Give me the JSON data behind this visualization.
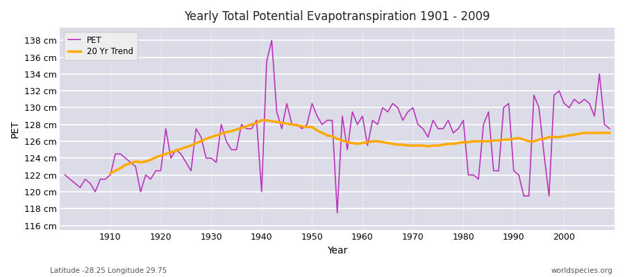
{
  "title": "Yearly Total Potential Evapotranspiration 1901 - 2009",
  "xlabel": "Year",
  "ylabel": "PET",
  "subtitle": "Latitude -28.25 Longitude 29.75",
  "watermark": "worldspecies.org",
  "pet_color": "#bb33bb",
  "trend_color": "#ffaa00",
  "fig_background_color": "#ffffff",
  "plot_background_color": "#dcdce8",
  "grid_color": "#ffffff",
  "ylim": [
    115.5,
    139.5
  ],
  "ytick_values": [
    116,
    118,
    120,
    122,
    124,
    126,
    128,
    130,
    132,
    134,
    136,
    138
  ],
  "xlim": [
    1900,
    2010
  ],
  "xticks": [
    1910,
    1920,
    1930,
    1940,
    1950,
    1960,
    1970,
    1980,
    1990,
    2000
  ],
  "years": [
    1901,
    1902,
    1903,
    1904,
    1905,
    1906,
    1907,
    1908,
    1909,
    1910,
    1911,
    1912,
    1913,
    1914,
    1915,
    1916,
    1917,
    1918,
    1919,
    1920,
    1921,
    1922,
    1923,
    1924,
    1925,
    1926,
    1927,
    1928,
    1929,
    1930,
    1931,
    1932,
    1933,
    1934,
    1935,
    1936,
    1937,
    1938,
    1939,
    1940,
    1941,
    1942,
    1943,
    1944,
    1945,
    1946,
    1947,
    1948,
    1949,
    1950,
    1951,
    1952,
    1953,
    1954,
    1955,
    1956,
    1957,
    1958,
    1959,
    1960,
    1961,
    1962,
    1963,
    1964,
    1965,
    1966,
    1967,
    1968,
    1969,
    1970,
    1971,
    1972,
    1973,
    1974,
    1975,
    1976,
    1977,
    1978,
    1979,
    1980,
    1981,
    1982,
    1983,
    1984,
    1985,
    1986,
    1987,
    1988,
    1989,
    1990,
    1991,
    1992,
    1993,
    1994,
    1995,
    1996,
    1997,
    1998,
    1999,
    2000,
    2001,
    2002,
    2003,
    2004,
    2005,
    2006,
    2007,
    2008,
    2009
  ],
  "pet": [
    122.0,
    121.5,
    121.0,
    120.5,
    121.5,
    121.0,
    120.0,
    121.5,
    121.5,
    122.0,
    124.5,
    124.5,
    124.0,
    123.5,
    123.0,
    120.0,
    122.0,
    121.5,
    122.5,
    122.5,
    127.5,
    124.0,
    125.0,
    124.5,
    123.5,
    122.5,
    127.5,
    126.5,
    124.0,
    124.0,
    123.5,
    128.0,
    126.0,
    125.0,
    125.0,
    128.0,
    127.5,
    127.5,
    128.5,
    120.0,
    135.5,
    138.0,
    129.5,
    127.5,
    130.5,
    128.0,
    128.0,
    127.5,
    128.0,
    130.5,
    129.0,
    128.0,
    128.5,
    128.5,
    117.5,
    129.0,
    125.0,
    129.5,
    128.0,
    129.0,
    125.5,
    128.5,
    128.0,
    130.0,
    129.5,
    130.5,
    130.0,
    128.5,
    129.5,
    130.0,
    128.0,
    127.5,
    126.5,
    128.5,
    127.5,
    127.5,
    128.5,
    127.0,
    127.5,
    128.5,
    122.0,
    122.0,
    121.5,
    128.0,
    129.5,
    122.5,
    122.5,
    130.0,
    130.5,
    122.5,
    122.0,
    119.5,
    119.5,
    131.5,
    130.0,
    124.5,
    119.5,
    131.5,
    132.0,
    130.5,
    130.0,
    131.0,
    130.5,
    131.0,
    130.5,
    129.0,
    134.0,
    128.0,
    127.5
  ],
  "trend_years": [
    1910,
    1911,
    1912,
    1913,
    1914,
    1915,
    1916,
    1917,
    1918,
    1919,
    1920,
    1921,
    1922,
    1923,
    1924,
    1925,
    1926,
    1927,
    1928,
    1929,
    1930,
    1931,
    1932,
    1933,
    1934,
    1935,
    1936,
    1937,
    1938,
    1939,
    1940,
    1941,
    1942,
    1943,
    1944,
    1945,
    1946,
    1947,
    1948,
    1949,
    1950,
    1951,
    1952,
    1953,
    1954,
    1955,
    1956,
    1957,
    1958,
    1959,
    1960,
    1961,
    1962,
    1963,
    1964,
    1965,
    1966,
    1967,
    1968,
    1969,
    1970,
    1971,
    1972,
    1973,
    1974,
    1975,
    1976,
    1977,
    1978,
    1979,
    1980,
    1981,
    1982,
    1983,
    1984,
    1985,
    1986,
    1987,
    1988,
    1989,
    1990,
    1991,
    1992,
    1993,
    1994,
    1995,
    1996,
    1997,
    1998,
    1999,
    2000,
    2001,
    2002,
    2003,
    2004,
    2005,
    2006,
    2007,
    2008,
    2009
  ],
  "trend": [
    122.2,
    122.5,
    122.8,
    123.2,
    123.4,
    123.6,
    123.5,
    123.6,
    123.8,
    124.1,
    124.3,
    124.5,
    124.7,
    124.9,
    125.1,
    125.3,
    125.5,
    125.8,
    126.0,
    126.3,
    126.5,
    126.7,
    126.9,
    127.1,
    127.2,
    127.4,
    127.6,
    127.8,
    128.0,
    128.2,
    128.5,
    128.5,
    128.4,
    128.3,
    128.2,
    128.1,
    128.0,
    127.9,
    127.8,
    127.7,
    127.7,
    127.3,
    127.0,
    126.7,
    126.6,
    126.3,
    126.1,
    125.9,
    125.8,
    125.7,
    125.8,
    125.9,
    126.0,
    126.0,
    125.9,
    125.8,
    125.7,
    125.6,
    125.6,
    125.5,
    125.5,
    125.5,
    125.5,
    125.4,
    125.5,
    125.5,
    125.6,
    125.7,
    125.7,
    125.8,
    125.9,
    125.9,
    126.0,
    126.0,
    126.0,
    126.0,
    126.1,
    126.1,
    126.2,
    126.2,
    126.3,
    126.4,
    126.2,
    126.0,
    126.0,
    126.2,
    126.3,
    126.5,
    126.5,
    126.5,
    126.6,
    126.7,
    126.8,
    126.9,
    127.0,
    127.0,
    127.0,
    127.0,
    127.0,
    127.0
  ]
}
